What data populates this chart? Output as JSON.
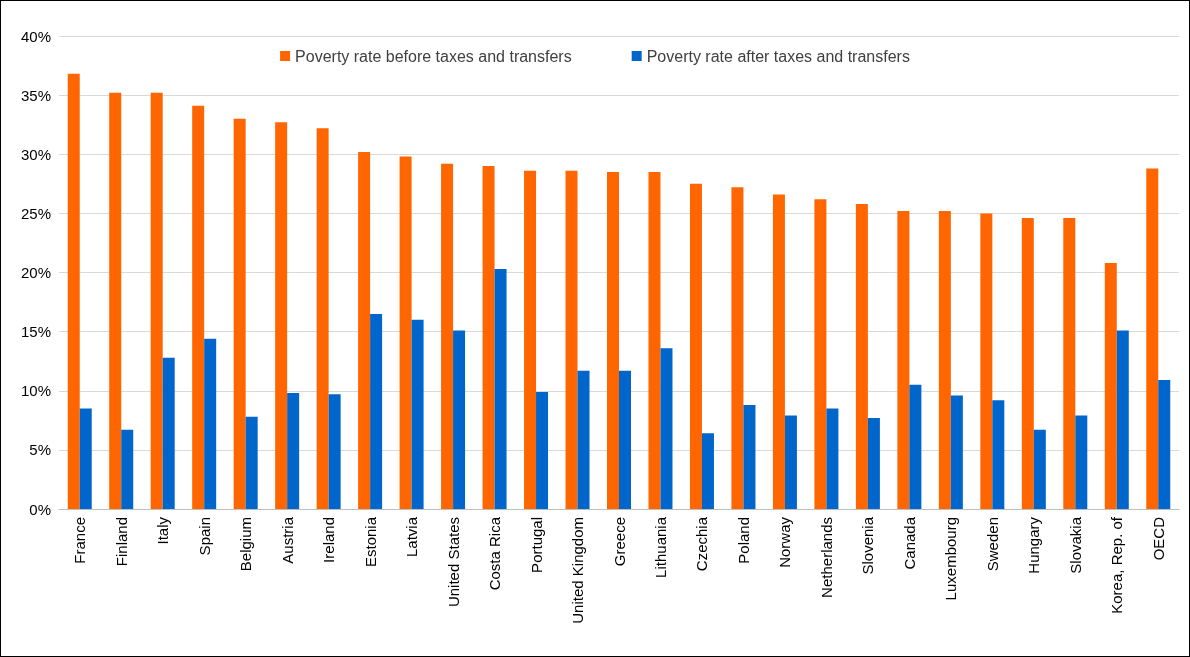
{
  "chart_data": {
    "type": "bar",
    "categories": [
      "France",
      "Finland",
      "Italy",
      "Spain",
      "Belgium",
      "Austria",
      "Ireland",
      "Estonia",
      "Latvia",
      "United States",
      "Costa Rica",
      "Portugal",
      "United Kingdom",
      "Greece",
      "Lithuania",
      "Czechia",
      "Poland",
      "Norway",
      "Netherlands",
      "Slovenia",
      "Canada",
      "Luxembourg",
      "Sweden",
      "Hungary",
      "Slovakia",
      "Korea, Rep. of",
      "OECD"
    ],
    "series": [
      {
        "name": "Poverty rate before taxes and transfers",
        "color": "#ff6600",
        "values": [
          36.8,
          35.2,
          35.2,
          34.1,
          33.0,
          32.7,
          32.2,
          30.2,
          29.8,
          29.2,
          29.0,
          28.6,
          28.6,
          28.5,
          28.5,
          27.5,
          27.2,
          26.6,
          26.2,
          25.8,
          25.2,
          25.2,
          25.0,
          24.6,
          24.6,
          20.8,
          28.8
        ]
      },
      {
        "name": "Poverty rate after taxes and transfers",
        "color": "#0066cc",
        "values": [
          8.5,
          6.7,
          12.8,
          14.4,
          7.8,
          9.8,
          9.7,
          16.5,
          16.0,
          15.1,
          20.3,
          9.9,
          11.7,
          11.7,
          13.6,
          6.4,
          8.8,
          7.9,
          8.5,
          7.7,
          10.5,
          9.6,
          9.2,
          6.7,
          7.9,
          15.1,
          10.9
        ]
      }
    ],
    "ylim": [
      0,
      40
    ],
    "yticks": [
      {
        "value": 0,
        "label": "0%"
      },
      {
        "value": 5,
        "label": "5%"
      },
      {
        "value": 10,
        "label": "10%"
      },
      {
        "value": 15,
        "label": "15%"
      },
      {
        "value": 20,
        "label": "20%"
      },
      {
        "value": 25,
        "label": "25%"
      },
      {
        "value": 30,
        "label": "30%"
      },
      {
        "value": 35,
        "label": "35%"
      },
      {
        "value": 40,
        "label": "40%"
      }
    ],
    "grid": true,
    "legend": "top"
  }
}
